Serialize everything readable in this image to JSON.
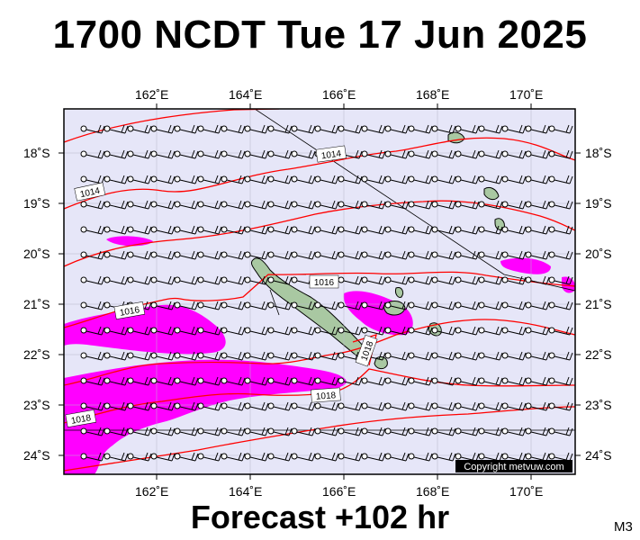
{
  "header": {
    "title": "1700 NCDT Tue 17 Jun 2025"
  },
  "footer": {
    "forecast_label": "Forecast +102 hr",
    "model_code": "M3",
    "copyright": "Copyright metvuw.com"
  },
  "map": {
    "lon_range": [
      160.0,
      171.0
    ],
    "lat_range": [
      -24.4,
      -17.1
    ],
    "lon_tick_labels": [
      "162˚E",
      "164˚E",
      "166˚E",
      "168˚E",
      "170˚E"
    ],
    "lat_tick_labels": [
      "18˚S",
      "19˚S",
      "20˚S",
      "21˚S",
      "22˚S",
      "23˚S",
      "24˚S"
    ],
    "isobar_labels": [
      "1014",
      "1014",
      "1016",
      "1016",
      "1018",
      "1018",
      "1018"
    ],
    "colors": {
      "background": "#e6e6f8",
      "rain": "#ff00ff",
      "isobar": "#ff0000",
      "land": "#a9c8a2"
    }
  }
}
